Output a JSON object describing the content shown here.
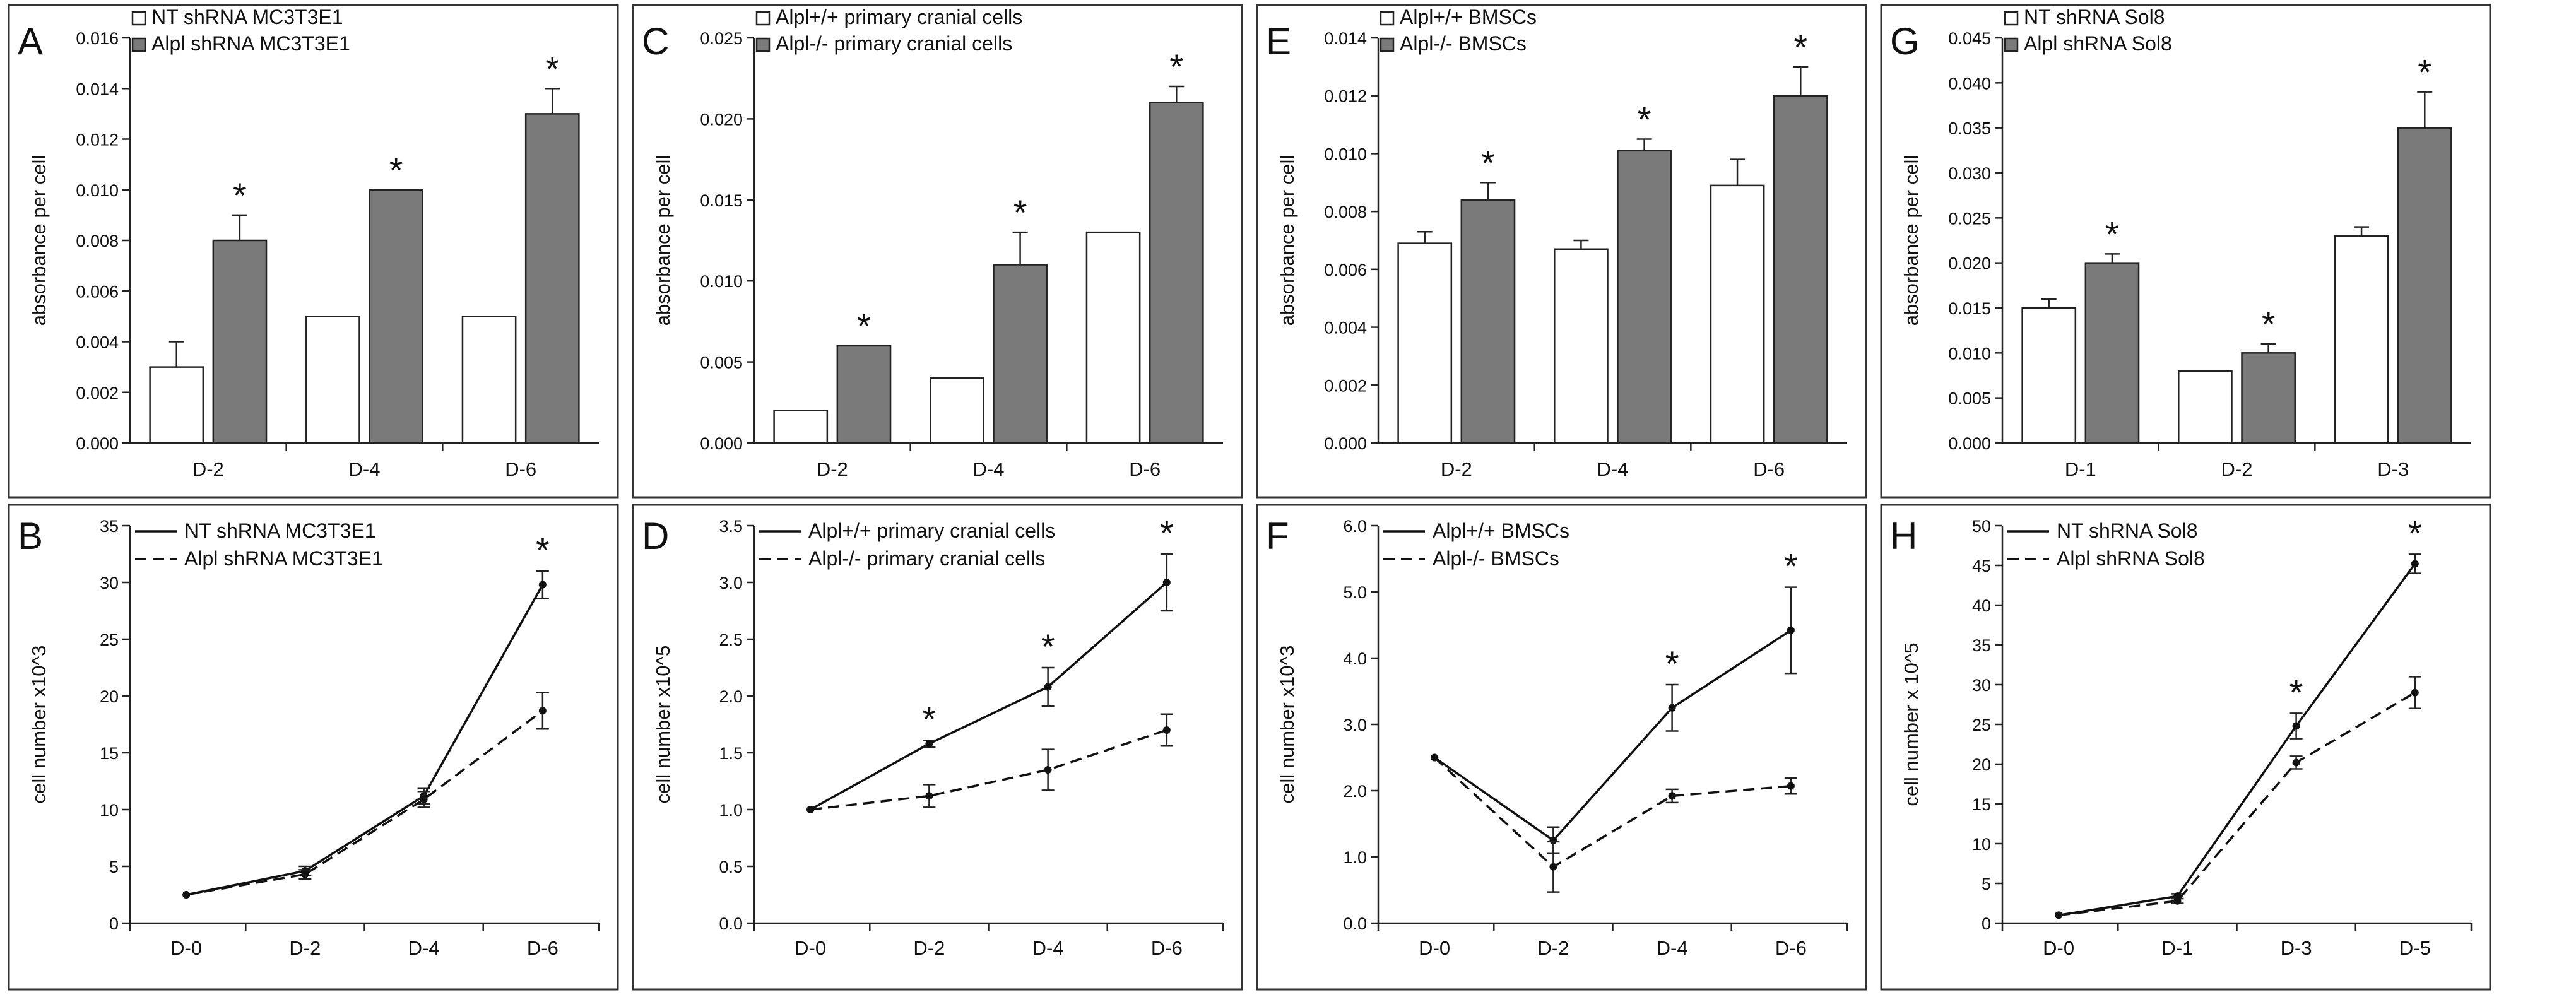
{
  "chart_data": [
    {
      "panel": "A",
      "type": "bar",
      "categories": [
        "D-2",
        "D-4",
        "D-6"
      ],
      "ylabel": "absorbance per cell",
      "ylim": [
        0,
        0.016
      ],
      "yticks": [
        "0.000",
        "0.002",
        "0.004",
        "0.006",
        "0.008",
        "0.010",
        "0.012",
        "0.014",
        "0.016"
      ],
      "series": [
        {
          "name": "NT shRNA MC3T3E1",
          "fill": "#ffffff",
          "values": [
            0.003,
            0.005,
            0.005
          ],
          "errors": [
            0.001,
            0,
            0
          ]
        },
        {
          "name": "Alpl shRNA MC3T3E1",
          "fill": "#7a7a7a",
          "values": [
            0.008,
            0.01,
            0.013
          ],
          "errors": [
            0.001,
            0,
            0.001
          ]
        }
      ],
      "stars": [
        true,
        true,
        true
      ],
      "star_label": "*"
    },
    {
      "panel": "C",
      "type": "bar",
      "categories": [
        "D-2",
        "D-4",
        "D-6"
      ],
      "ylabel": "absorbance per cell",
      "ylim": [
        0,
        0.025
      ],
      "yticks": [
        "0.000",
        "0.005",
        "0.010",
        "0.015",
        "0.020",
        "0.025"
      ],
      "series": [
        {
          "name": "Alpl+/+ primary cranial cells",
          "fill": "#ffffff",
          "values": [
            0.002,
            0.004,
            0.013
          ],
          "errors": [
            0,
            0,
            0
          ]
        },
        {
          "name": "Alpl-/- primary cranial cells",
          "fill": "#7a7a7a",
          "values": [
            0.006,
            0.011,
            0.021
          ],
          "errors": [
            0,
            0.002,
            0.001
          ]
        }
      ],
      "stars": [
        true,
        true,
        true
      ],
      "star_label": "*"
    },
    {
      "panel": "E",
      "type": "bar",
      "categories": [
        "D-2",
        "D-4",
        "D-6"
      ],
      "ylabel": "absorbance per cell",
      "ylim": [
        0,
        0.014
      ],
      "yticks": [
        "0.000",
        "0.002",
        "0.004",
        "0.006",
        "0.008",
        "0.010",
        "0.012",
        "0.014"
      ],
      "series": [
        {
          "name": "Alpl+/+ BMSCs",
          "fill": "#ffffff",
          "values": [
            0.0069,
            0.0067,
            0.0089
          ],
          "errors": [
            0.0004,
            0.0003,
            0.0009
          ]
        },
        {
          "name": "Alpl-/- BMSCs",
          "fill": "#7a7a7a",
          "values": [
            0.0084,
            0.0101,
            0.012
          ],
          "errors": [
            0.0006,
            0.0004,
            0.001
          ]
        }
      ],
      "stars": [
        true,
        true,
        true
      ],
      "star_label": "*"
    },
    {
      "panel": "G",
      "type": "bar",
      "categories": [
        "D-1",
        "D-2",
        "D-3"
      ],
      "ylabel": "absorbance per cell",
      "ylim": [
        0,
        0.045
      ],
      "yticks": [
        "0.000",
        "0.005",
        "0.010",
        "0.015",
        "0.020",
        "0.025",
        "0.030",
        "0.035",
        "0.040",
        "0.045"
      ],
      "series": [
        {
          "name": "NT shRNA Sol8",
          "fill": "#ffffff",
          "values": [
            0.015,
            0.008,
            0.023
          ],
          "errors": [
            0.001,
            0,
            0.001
          ]
        },
        {
          "name": "Alpl shRNA Sol8",
          "fill": "#7a7a7a",
          "values": [
            0.02,
            0.01,
            0.035
          ],
          "errors": [
            0.001,
            0.001,
            0.004
          ]
        }
      ],
      "stars": [
        true,
        true,
        true
      ],
      "star_label": "*"
    },
    {
      "panel": "B",
      "type": "line",
      "categories": [
        "D-0",
        "D-2",
        "D-4",
        "D-6"
      ],
      "ylabel": "cell number x10^3",
      "ylim": [
        0,
        35
      ],
      "yticks": [
        "0",
        "5",
        "10",
        "15",
        "20",
        "25",
        "30",
        "35"
      ],
      "series": [
        {
          "name": "NT shRNA MC3T3E1",
          "dash": false,
          "values": [
            2.5,
            4.6,
            11.2,
            29.8
          ],
          "errors": [
            0,
            0.4,
            0.7,
            1.2
          ]
        },
        {
          "name": "Alpl shRNA MC3T3E1",
          "dash": true,
          "values": [
            2.5,
            4.3,
            10.9,
            18.7
          ],
          "errors": [
            0,
            0.4,
            0.7,
            1.6
          ]
        }
      ],
      "stars": [
        false,
        false,
        false,
        true
      ],
      "star_label": "*"
    },
    {
      "panel": "D",
      "type": "line",
      "categories": [
        "D-0",
        "D-2",
        "D-4",
        "D-6"
      ],
      "ylabel": "cell number x10^5",
      "ylim": [
        0,
        3.5
      ],
      "yticks": [
        "0.0",
        "0.5",
        "1.0",
        "1.5",
        "2.0",
        "2.5",
        "3.0",
        "3.5"
      ],
      "series": [
        {
          "name": "Alpl+/+ primary cranial cells",
          "dash": false,
          "values": [
            1.0,
            1.58,
            2.08,
            3.0
          ],
          "errors": [
            0,
            0.03,
            0.17,
            0.25
          ]
        },
        {
          "name": "Alpl-/- primary cranial cells",
          "dash": true,
          "values": [
            1.0,
            1.12,
            1.35,
            1.7
          ],
          "errors": [
            0,
            0.1,
            0.18,
            0.14
          ]
        }
      ],
      "stars": [
        false,
        true,
        true,
        true
      ],
      "star_label": "*"
    },
    {
      "panel": "F",
      "type": "line",
      "categories": [
        "D-0",
        "D-2",
        "D-4",
        "D-6"
      ],
      "ylabel": "cell number x10^3",
      "ylim": [
        0,
        6
      ],
      "yticks": [
        "0.0",
        "1.0",
        "2.0",
        "3.0",
        "4.0",
        "5.0",
        "6.0"
      ],
      "series": [
        {
          "name": "Alpl+/+ BMSCs",
          "dash": false,
          "values": [
            2.5,
            1.25,
            3.25,
            4.42
          ],
          "errors": [
            0,
            0.2,
            0.35,
            0.65
          ]
        },
        {
          "name": "Alpl-/- BMSCs",
          "dash": true,
          "values": [
            2.5,
            0.85,
            1.92,
            2.07
          ],
          "errors": [
            0,
            0.38,
            0.1,
            0.12
          ]
        }
      ],
      "stars": [
        false,
        false,
        true,
        true
      ],
      "star_label": "*"
    },
    {
      "panel": "H",
      "type": "line",
      "categories": [
        "D-0",
        "D-1",
        "D-3",
        "D-5"
      ],
      "ylabel": "cell number x 10^5",
      "ylim": [
        0,
        50
      ],
      "yticks": [
        "0",
        "5",
        "10",
        "15",
        "20",
        "25",
        "30",
        "35",
        "40",
        "45",
        "50"
      ],
      "series": [
        {
          "name": "NT shRNA Sol8",
          "dash": false,
          "values": [
            1.0,
            3.4,
            24.8,
            45.2
          ],
          "errors": [
            0,
            0.3,
            1.6,
            1.2
          ]
        },
        {
          "name": "Alpl shRNA Sol8",
          "dash": true,
          "values": [
            1.0,
            2.8,
            20.2,
            29.0
          ],
          "errors": [
            0,
            0.3,
            0.8,
            2.0
          ]
        }
      ],
      "stars": [
        false,
        false,
        true,
        true
      ],
      "star_label": "*"
    }
  ]
}
